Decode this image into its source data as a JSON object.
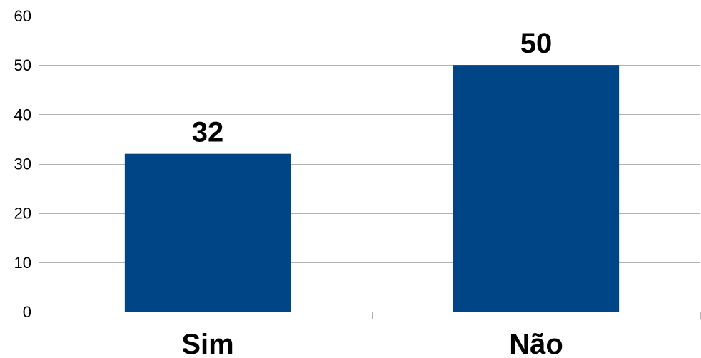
{
  "chart_data": {
    "type": "bar",
    "categories": [
      "Sim",
      "Não"
    ],
    "values": [
      32,
      50
    ],
    "ylim": [
      0,
      60
    ],
    "yticks": [
      0,
      10,
      20,
      30,
      40,
      50,
      60
    ],
    "grid": true,
    "legend": "none",
    "bar_color": "#004586",
    "show_data_labels": true
  }
}
